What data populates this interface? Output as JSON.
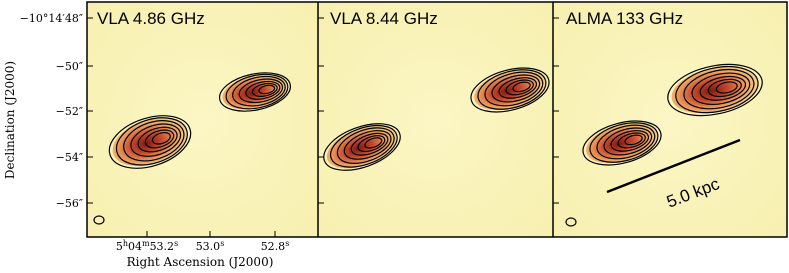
{
  "panels": [
    {
      "title": "VLA 4.86 GHz"
    },
    {
      "title": "VLA 8.44 GHz"
    },
    {
      "title": "ALMA 133 GHz"
    }
  ],
  "y_axis": {
    "label": "Declination (J2000)",
    "ticks": [
      "−10°14′48″",
      "−50″",
      "−52″",
      "−54″",
      "−56″"
    ]
  },
  "x_axis": {
    "label": "Right Ascension (J2000)",
    "ticks": [
      [
        [
          "5",
          "h"
        ],
        [
          "04",
          "m"
        ],
        [
          "53.2",
          "s"
        ]
      ],
      [
        [
          "53.0",
          "s"
        ]
      ],
      [
        [
          "52.8",
          "s"
        ]
      ]
    ]
  },
  "scale_bar": {
    "label": "5.0 kpc"
  }
}
